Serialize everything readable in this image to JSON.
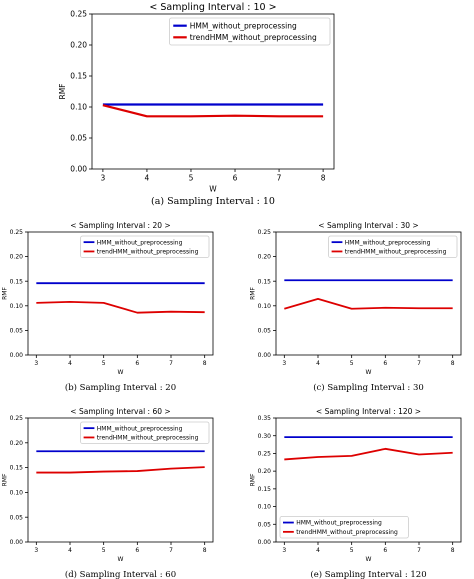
{
  "chart_data": [
    {
      "id": "a",
      "type": "line",
      "title": "< Sampling Interval : 10 >",
      "caption": "(a) Sampling Interval : 10",
      "xlabel": "W",
      "ylabel": "RMF",
      "x": [
        3,
        4,
        5,
        6,
        7,
        8
      ],
      "xticks": [
        "3",
        "4",
        "5",
        "6",
        "7",
        "8"
      ],
      "yticks": [
        "0.00",
        "0.05",
        "0.10",
        "0.15",
        "0.20",
        "0.25"
      ],
      "ylim": [
        0,
        0.25
      ],
      "legend_position": "top-right",
      "series": [
        {
          "name": "HMM_without_preprocessing",
          "color": "#0000cc",
          "values": [
            0.104,
            0.104,
            0.104,
            0.104,
            0.104,
            0.104
          ]
        },
        {
          "name": "trendHMM_without_preprocessing",
          "color": "#dd0000",
          "values": [
            0.103,
            0.085,
            0.085,
            0.086,
            0.085,
            0.085
          ]
        }
      ]
    },
    {
      "id": "b",
      "type": "line",
      "title": "< Sampling Interval : 20 >",
      "caption": "(b) Sampling Interval : 20",
      "xlabel": "W",
      "ylabel": "RMF",
      "x": [
        3,
        4,
        5,
        6,
        7,
        8
      ],
      "xticks": [
        "3",
        "4",
        "5",
        "6",
        "7",
        "8"
      ],
      "yticks": [
        "0.00",
        "0.05",
        "0.10",
        "0.15",
        "0.20",
        "0.25"
      ],
      "ylim": [
        0,
        0.25
      ],
      "legend_position": "top-right",
      "series": [
        {
          "name": "HMM_without_preprocessing",
          "color": "#0000cc",
          "values": [
            0.146,
            0.146,
            0.146,
            0.146,
            0.146,
            0.146
          ]
        },
        {
          "name": "trendHMM_without_preprocessing",
          "color": "#dd0000",
          "values": [
            0.106,
            0.108,
            0.106,
            0.086,
            0.088,
            0.087
          ]
        }
      ]
    },
    {
      "id": "c",
      "type": "line",
      "title": "< Sampling Interval : 30 >",
      "caption": "(c) Sampling Interval : 30",
      "xlabel": "W",
      "ylabel": "RMF",
      "x": [
        3,
        4,
        5,
        6,
        7,
        8
      ],
      "xticks": [
        "3",
        "4",
        "5",
        "6",
        "7",
        "8"
      ],
      "yticks": [
        "0.00",
        "0.05",
        "0.10",
        "0.15",
        "0.20",
        "0.25"
      ],
      "ylim": [
        0,
        0.25
      ],
      "legend_position": "top-right",
      "series": [
        {
          "name": "HMM_without_preprocessing",
          "color": "#0000cc",
          "values": [
            0.152,
            0.152,
            0.152,
            0.152,
            0.152,
            0.152
          ]
        },
        {
          "name": "trendHMM_without_preprocessing",
          "color": "#dd0000",
          "values": [
            0.094,
            0.114,
            0.094,
            0.096,
            0.095,
            0.095
          ]
        }
      ]
    },
    {
      "id": "d",
      "type": "line",
      "title": "< Sampling Interval : 60 >",
      "caption": "(d) Sampling Interval : 60",
      "xlabel": "W",
      "ylabel": "RMF",
      "x": [
        3,
        4,
        5,
        6,
        7,
        8
      ],
      "xticks": [
        "3",
        "4",
        "5",
        "6",
        "7",
        "8"
      ],
      "yticks": [
        "0.00",
        "0.05",
        "0.10",
        "0.15",
        "0.20",
        "0.25"
      ],
      "ylim": [
        0,
        0.25
      ],
      "legend_position": "top-right",
      "series": [
        {
          "name": "HMM_without_preprocessing",
          "color": "#0000cc",
          "values": [
            0.183,
            0.183,
            0.183,
            0.183,
            0.183,
            0.183
          ]
        },
        {
          "name": "trendHMM_without_preprocessing",
          "color": "#dd0000",
          "values": [
            0.14,
            0.14,
            0.142,
            0.143,
            0.148,
            0.151
          ]
        }
      ]
    },
    {
      "id": "e",
      "type": "line",
      "title": "< Sampling Interval : 120 >",
      "caption": "(e) Sampling Interval : 120",
      "xlabel": "W",
      "ylabel": "RMF",
      "x": [
        3,
        4,
        5,
        6,
        7,
        8
      ],
      "xticks": [
        "3",
        "4",
        "5",
        "6",
        "7",
        "8"
      ],
      "yticks": [
        "0.00",
        "0.05",
        "0.10",
        "0.15",
        "0.20",
        "0.25",
        "0.30",
        "0.35"
      ],
      "ylim": [
        0,
        0.35
      ],
      "legend_position": "bottom-left",
      "series": [
        {
          "name": "HMM_without_preprocessing",
          "color": "#0000cc",
          "values": [
            0.296,
            0.296,
            0.296,
            0.296,
            0.296,
            0.296
          ]
        },
        {
          "name": "trendHMM_without_preprocessing",
          "color": "#dd0000",
          "values": [
            0.233,
            0.24,
            0.243,
            0.263,
            0.247,
            0.252
          ]
        }
      ]
    }
  ]
}
